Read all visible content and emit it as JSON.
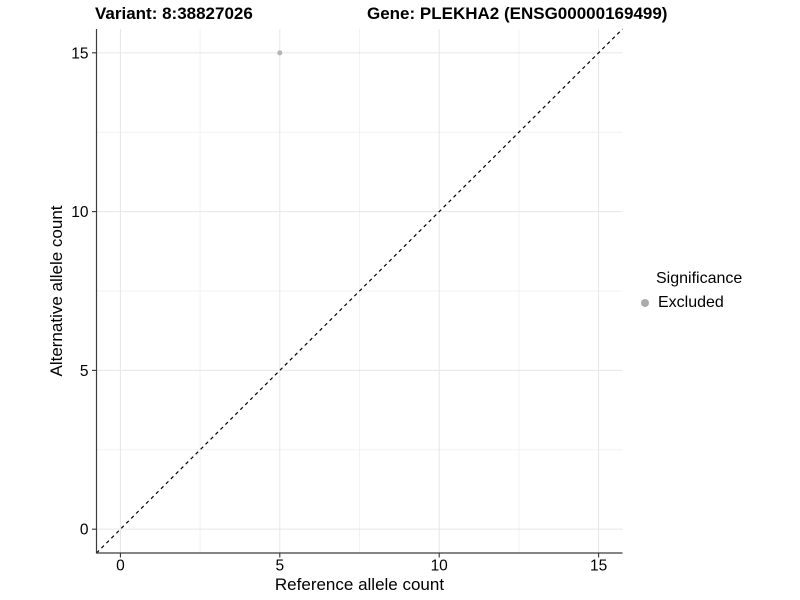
{
  "chart_data": {
    "type": "scatter",
    "title_variant": "Variant: 8:38827026",
    "title_gene": "Gene: PLEKHA2 (ENSG00000169499)",
    "xlabel": "Reference allele count",
    "ylabel": "Alternative allele count",
    "xlim": [
      -0.75,
      15.75
    ],
    "ylim": [
      -0.75,
      15.75
    ],
    "x_major_ticks": [
      0,
      5,
      10,
      15
    ],
    "y_major_ticks": [
      0,
      5,
      10,
      15
    ],
    "x_minor_ticks": [
      2.5,
      7.5,
      12.5
    ],
    "y_minor_ticks": [
      2.5,
      7.5,
      12.5
    ],
    "grid": true,
    "points": [
      {
        "x": 5,
        "y": 15,
        "series": "Excluded",
        "color": "#b3b3b3",
        "radius": 2.5
      }
    ],
    "reference_line": {
      "slope": 1,
      "intercept": 0,
      "style": "dashed",
      "color": "#000000"
    },
    "legend": {
      "title": "Significance",
      "position": "right",
      "entries": [
        {
          "label": "Excluded",
          "color": "#ababab"
        }
      ]
    }
  },
  "style": {
    "background": "#ffffff",
    "major_grid": "#e6e6e6",
    "minor_grid": "#f2f2f2",
    "axis_line": "#3c3c3c",
    "tick": "#333333",
    "text": "#000000"
  }
}
